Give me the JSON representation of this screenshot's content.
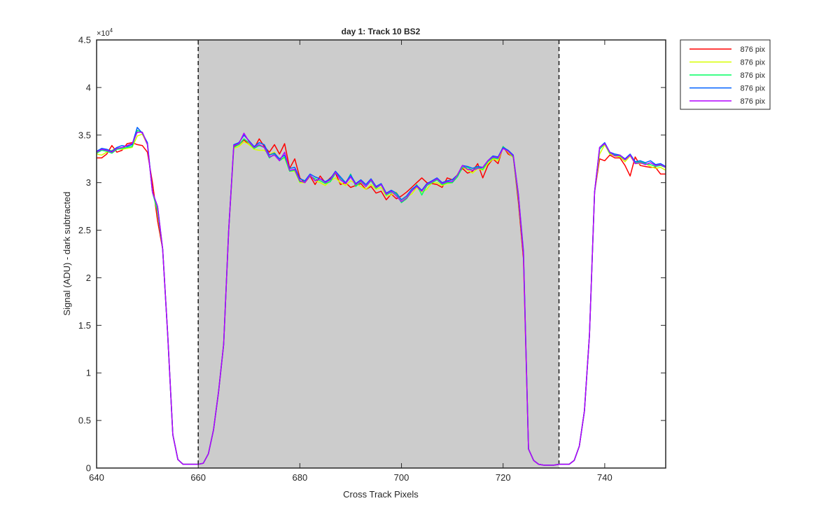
{
  "chart_data": {
    "type": "line",
    "title": "day 1: Track 10  BS2",
    "xlabel": "Cross Track Pixels",
    "ylabel": "Signal (ADU) - dark subtracted",
    "y_exponent_label": "×10",
    "y_exponent_power": "4",
    "xlim": [
      640,
      752
    ],
    "ylim": [
      0,
      45000
    ],
    "x_ticks": [
      640,
      660,
      680,
      700,
      720,
      740
    ],
    "x_tick_labels": [
      "640",
      "660",
      "680",
      "700",
      "720",
      "740"
    ],
    "y_ticks": [
      0,
      5000,
      10000,
      15000,
      20000,
      25000,
      30000,
      35000,
      40000,
      45000
    ],
    "y_tick_labels": [
      "0",
      "0.5",
      "1",
      "1.5",
      "2",
      "2.5",
      "3",
      "3.5",
      "4",
      "4.5"
    ],
    "grid": false,
    "legend_position": "outside-top-right",
    "shaded_region": {
      "x_start": 660,
      "x_end": 731,
      "color": "#cccccc",
      "border": "dashed"
    },
    "x": [
      640,
      641,
      642,
      643,
      644,
      645,
      646,
      647,
      648,
      649,
      650,
      651,
      652,
      653,
      654,
      655,
      656,
      657,
      658,
      659,
      660,
      661,
      662,
      663,
      664,
      665,
      666,
      667,
      668,
      669,
      670,
      671,
      672,
      673,
      674,
      675,
      676,
      677,
      678,
      679,
      680,
      681,
      682,
      683,
      684,
      685,
      686,
      687,
      688,
      689,
      690,
      691,
      692,
      693,
      694,
      695,
      696,
      697,
      698,
      699,
      700,
      701,
      702,
      703,
      704,
      705,
      706,
      707,
      708,
      709,
      710,
      711,
      712,
      713,
      714,
      715,
      716,
      717,
      718,
      719,
      720,
      721,
      722,
      723,
      724,
      725,
      726,
      727,
      728,
      729,
      730,
      731,
      732,
      733,
      734,
      735,
      736,
      737,
      738,
      739,
      740,
      741,
      742,
      743,
      744,
      745,
      746,
      747,
      748,
      749,
      750,
      751,
      752
    ],
    "series": [
      {
        "name": "876 pix",
        "color": "#ff0000",
        "values": [
          32600,
          32600,
          33000,
          33900,
          33200,
          33400,
          34100,
          34200,
          34000,
          33900,
          33200,
          30000,
          26000,
          23000,
          14000,
          3500,
          900,
          400,
          400,
          400,
          400,
          500,
          1500,
          4000,
          8000,
          13000,
          25000,
          33800,
          34000,
          34500,
          34000,
          33600,
          34600,
          33800,
          33200,
          34000,
          33000,
          34100,
          31500,
          32500,
          30500,
          30000,
          30700,
          29800,
          30700,
          30000,
          30500,
          31000,
          29800,
          30000,
          29500,
          29700,
          29900,
          29300,
          29600,
          28900,
          29100,
          28200,
          28800,
          28300,
          28600,
          29000,
          29500,
          30000,
          30500,
          30000,
          29900,
          29800,
          29500,
          30500,
          30300,
          30800,
          31500,
          31000,
          31200,
          32000,
          30500,
          31800,
          32500,
          32000,
          33800,
          33000,
          32700,
          28000,
          22000,
          2000,
          800,
          400,
          300,
          300,
          300,
          400,
          400,
          400,
          800,
          2300,
          6000,
          14000,
          29000,
          32500,
          32300,
          32900,
          32600,
          32600,
          31800,
          30700,
          32700,
          31800,
          31700,
          31600,
          31600,
          30900,
          30900
        ]
      },
      {
        "name": "876 pix",
        "color": "#d8ff00",
        "values": [
          33000,
          32900,
          33200,
          33400,
          33600,
          33500,
          33600,
          33700,
          34900,
          35100,
          34000,
          29000,
          27000,
          23000,
          14000,
          3500,
          900,
          400,
          400,
          400,
          400,
          500,
          1500,
          4000,
          8000,
          13000,
          25000,
          33600,
          33800,
          34300,
          34000,
          33500,
          33400,
          33400,
          33000,
          33200,
          32400,
          32600,
          31200,
          31200,
          30000,
          30000,
          30800,
          30200,
          30000,
          29700,
          30200,
          30500,
          30000,
          29700,
          30200,
          29900,
          29600,
          29300,
          29800,
          29300,
          29500,
          28600,
          28700,
          29000,
          28000,
          28500,
          28800,
          29500,
          29000,
          29300,
          30000,
          30000,
          29700,
          29900,
          30000,
          30900,
          31600,
          31300,
          31000,
          31500,
          31300,
          32000,
          32500,
          32300,
          33700,
          33200,
          32600,
          28500,
          22500,
          2000,
          800,
          400,
          300,
          300,
          300,
          400,
          400,
          400,
          800,
          2300,
          6000,
          14000,
          29000,
          33000,
          34000,
          33000,
          32800,
          32700,
          32200,
          32800,
          32000,
          32000,
          32000,
          31700,
          31500,
          31600,
          31300
        ]
      },
      {
        "name": "876 pix",
        "color": "#00ff60",
        "values": [
          33100,
          33400,
          33300,
          33100,
          33500,
          33600,
          33700,
          33800,
          35500,
          35300,
          34100,
          29000,
          27000,
          23000,
          14000,
          3500,
          900,
          400,
          400,
          400,
          400,
          500,
          1500,
          4000,
          8000,
          13000,
          25000,
          33700,
          34000,
          34600,
          34200,
          33600,
          33900,
          33700,
          32600,
          33000,
          32300,
          32700,
          31200,
          31300,
          30100,
          30100,
          30700,
          30400,
          30200,
          29900,
          30100,
          31000,
          30500,
          29900,
          30900,
          29600,
          30100,
          29600,
          30200,
          29400,
          29800,
          28700,
          29000,
          28800,
          27900,
          28300,
          29100,
          29800,
          28700,
          29700,
          30000,
          30300,
          29800,
          30000,
          30000,
          30600,
          31600,
          31600,
          31300,
          31600,
          31400,
          32200,
          32600,
          32500,
          33800,
          33300,
          32700,
          28500,
          22500,
          2000,
          800,
          400,
          300,
          300,
          300,
          400,
          400,
          400,
          800,
          2300,
          6000,
          14000,
          29000,
          33500,
          34100,
          33100,
          32900,
          32800,
          32400,
          32900,
          32100,
          32200,
          32000,
          31900,
          31700,
          31800,
          31600
        ]
      },
      {
        "name": "876 pix",
        "color": "#0060ff",
        "values": [
          33300,
          33600,
          33500,
          33300,
          33700,
          33900,
          33800,
          34000,
          35800,
          35200,
          34200,
          29000,
          27500,
          23000,
          14000,
          3500,
          900,
          400,
          400,
          400,
          400,
          500,
          1500,
          4000,
          8000,
          13000,
          25000,
          34000,
          34200,
          35000,
          34400,
          33800,
          34200,
          34000,
          32900,
          33100,
          32500,
          32900,
          31500,
          31600,
          30400,
          30200,
          30900,
          30600,
          30400,
          30100,
          30400,
          31200,
          30600,
          30000,
          30800,
          29900,
          30300,
          29800,
          30400,
          29600,
          29900,
          28900,
          29200,
          28900,
          28200,
          28600,
          29300,
          29700,
          29200,
          29900,
          30200,
          30500,
          30000,
          30200,
          30300,
          30800,
          31800,
          31700,
          31500,
          31700,
          31600,
          32300,
          32800,
          32700,
          33700,
          33400,
          32900,
          28800,
          22800,
          2000,
          800,
          400,
          300,
          300,
          300,
          400,
          400,
          400,
          800,
          2300,
          6000,
          14000,
          29000,
          33700,
          34200,
          33200,
          33000,
          32900,
          32500,
          33000,
          32200,
          32300,
          32100,
          32300,
          31900,
          32000,
          31700
        ]
      },
      {
        "name": "876 pix",
        "color": "#b400ff",
        "values": [
          33200,
          33500,
          33400,
          33200,
          33600,
          33700,
          33900,
          34100,
          35300,
          35300,
          34000,
          29000,
          27500,
          23000,
          14000,
          3500,
          900,
          400,
          400,
          400,
          400,
          500,
          1500,
          4000,
          8000,
          13000,
          25000,
          33900,
          34100,
          35200,
          34300,
          33700,
          34000,
          33700,
          32700,
          32900,
          32300,
          33200,
          31300,
          31400,
          30200,
          30000,
          30800,
          30200,
          30400,
          30000,
          30300,
          31100,
          30300,
          29900,
          30600,
          29800,
          30200,
          29600,
          30300,
          29500,
          29800,
          28800,
          29100,
          28600,
          28000,
          28400,
          29100,
          29600,
          29100,
          29800,
          30100,
          30400,
          29900,
          30100,
          30100,
          30800,
          31800,
          31400,
          31300,
          31500,
          31600,
          32300,
          32700,
          32600,
          33600,
          33300,
          32800,
          28800,
          22500,
          2000,
          800,
          400,
          300,
          300,
          300,
          400,
          400,
          400,
          800,
          2300,
          6000,
          14000,
          29000,
          33700,
          34100,
          33200,
          32800,
          32900,
          32400,
          32900,
          32000,
          32100,
          31900,
          32100,
          31800,
          31900,
          31600
        ]
      }
    ]
  }
}
